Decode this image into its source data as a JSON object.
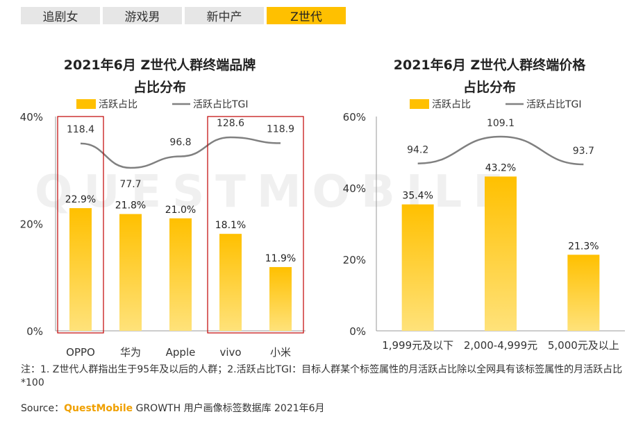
{
  "tabs": [
    {
      "label": "追剧女",
      "active": false
    },
    {
      "label": "游戏男",
      "active": false
    },
    {
      "label": "新中产",
      "active": false
    },
    {
      "label": "Z世代",
      "active": true
    }
  ],
  "watermark": "QUESTMOBILE",
  "note": "注：1. Z世代人群指出生于95年及以后的人群；2.活跃占比TGI：目标人群某个标签属性的月活跃占比除以全网具有该标签属性的月活跃占比*100",
  "source": {
    "prefix": "Source：",
    "brand": "QuestMobile",
    "suffix": " GROWTH 用户画像标签数据库 2021年6月"
  },
  "colors": {
    "bar_top": "#ffc000",
    "bar_bottom": "#ffe27a",
    "line": "#808080",
    "highlight_box": "#c00000",
    "tab_active": "#ffc000"
  },
  "chart_data": [
    {
      "type": "bar",
      "title": "2021年6月 Z世代人群终端品牌占比分布",
      "title_lines": [
        "2021年6月 Z世代人群终端品牌",
        "占比分布"
      ],
      "categories": [
        "OPPO",
        "华为",
        "Apple",
        "vivo",
        "小米"
      ],
      "series": [
        {
          "name": "活跃占比",
          "values": [
            22.9,
            21.8,
            21.0,
            18.1,
            11.9
          ],
          "labels": [
            "22.9%",
            "21.8%",
            "21.0%",
            "18.1%",
            "11.9%"
          ]
        },
        {
          "name": "活跃占比TGI",
          "type": "line",
          "values": [
            118.4,
            77.7,
            96.8,
            128.6,
            118.9
          ],
          "labels": [
            "118.4",
            "77.7",
            "96.8",
            "128.6",
            "118.9"
          ]
        }
      ],
      "yticks": [
        "0%",
        "20%",
        "40%"
      ],
      "ylim": [
        0,
        40
      ],
      "highlighted_categories": [
        "OPPO",
        "vivo",
        "小米"
      ],
      "legend": "top"
    },
    {
      "type": "bar",
      "title": "2021年6月 Z世代人群终端价格占比分布",
      "title_lines": [
        "2021年6月 Z世代人群终端价格",
        "占比分布"
      ],
      "categories": [
        "1,999元及以下",
        "2,000-4,999元",
        "5,000元及以上"
      ],
      "series": [
        {
          "name": "活跃占比",
          "values": [
            35.4,
            43.2,
            21.3
          ],
          "labels": [
            "35.4%",
            "43.2%",
            "21.3%"
          ]
        },
        {
          "name": "活跃占比TGI",
          "type": "line",
          "values": [
            94.2,
            109.1,
            93.7
          ],
          "labels": [
            "94.2",
            "109.1",
            "93.7"
          ]
        }
      ],
      "yticks": [
        "0%",
        "20%",
        "40%",
        "60%"
      ],
      "ylim": [
        0,
        60
      ],
      "legend": "top"
    }
  ]
}
